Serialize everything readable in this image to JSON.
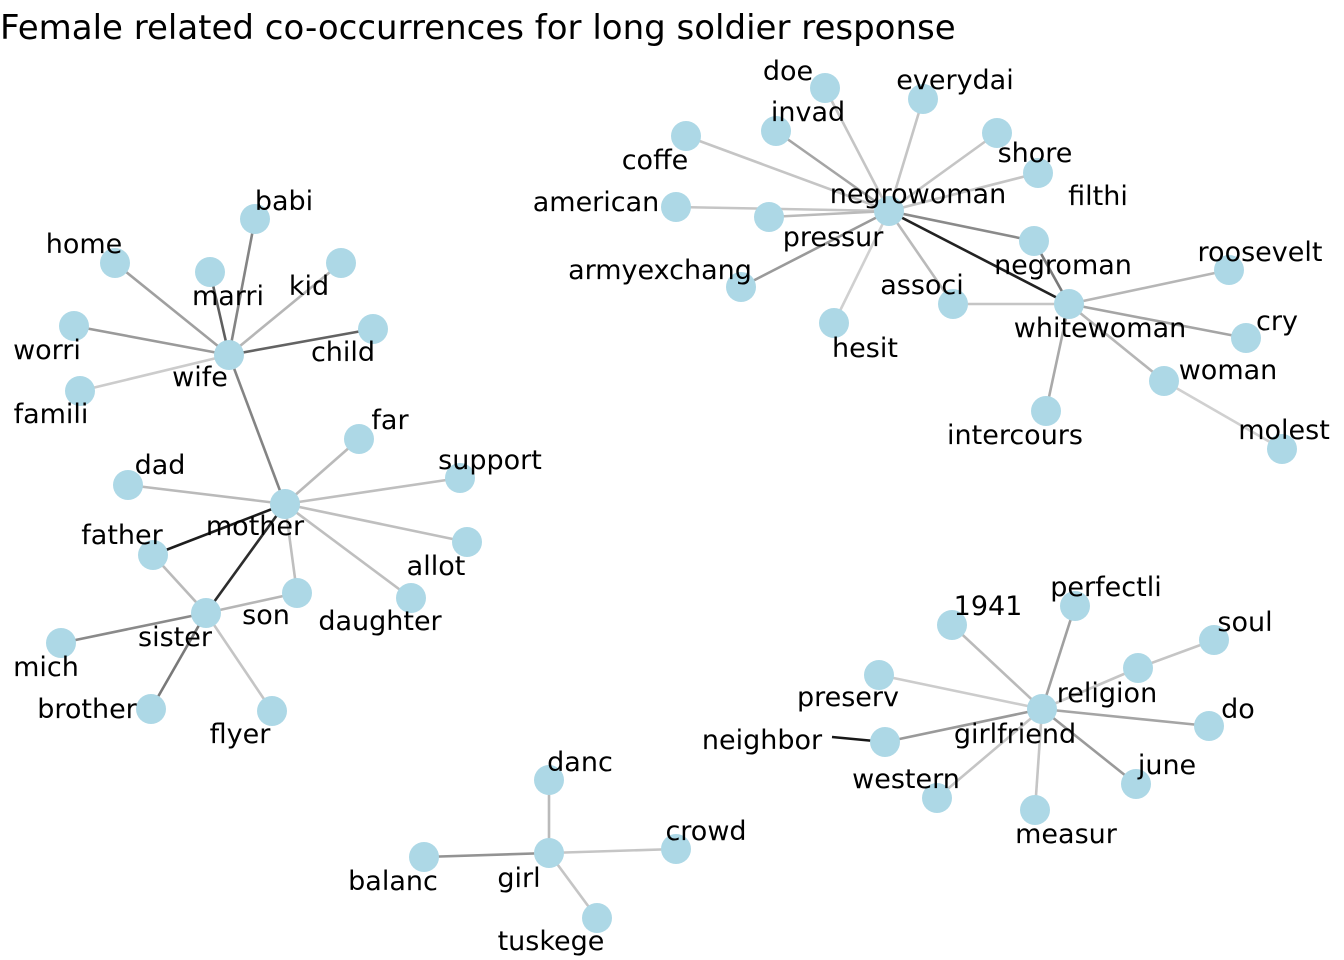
{
  "title": "Female related co-occurrences for long soldier response",
  "node_color": "#add8e6",
  "nodes": [
    {
      "id": "wife",
      "label": "wife"
    },
    {
      "id": "babi",
      "label": "babi"
    },
    {
      "id": "home",
      "label": "home"
    },
    {
      "id": "marri",
      "label": "marri"
    },
    {
      "id": "kid",
      "label": "kid"
    },
    {
      "id": "worri",
      "label": "worri"
    },
    {
      "id": "child",
      "label": "child"
    },
    {
      "id": "famili",
      "label": "famili"
    },
    {
      "id": "mother",
      "label": "mother"
    },
    {
      "id": "far",
      "label": "far"
    },
    {
      "id": "dad",
      "label": "dad"
    },
    {
      "id": "support",
      "label": "support"
    },
    {
      "id": "father",
      "label": "father"
    },
    {
      "id": "allot",
      "label": "allot"
    },
    {
      "id": "son",
      "label": "son"
    },
    {
      "id": "daughter",
      "label": "daughter"
    },
    {
      "id": "sister",
      "label": "sister"
    },
    {
      "id": "mich",
      "label": "mich"
    },
    {
      "id": "brother",
      "label": "brother"
    },
    {
      "id": "flyer",
      "label": "flyer"
    },
    {
      "id": "negrowoman",
      "label": "negrowoman"
    },
    {
      "id": "doe",
      "label": "doe"
    },
    {
      "id": "everydai",
      "label": "everydai"
    },
    {
      "id": "invad",
      "label": "invad"
    },
    {
      "id": "coffe",
      "label": "coffe"
    },
    {
      "id": "shore",
      "label": "shore"
    },
    {
      "id": "filthi",
      "label": "filthi"
    },
    {
      "id": "american",
      "label": "american"
    },
    {
      "id": "pressur",
      "label": "pressur"
    },
    {
      "id": "armyexchang",
      "label": "armyexchang"
    },
    {
      "id": "negroman",
      "label": "negroman"
    },
    {
      "id": "associ",
      "label": "associ"
    },
    {
      "id": "hesit",
      "label": "hesit"
    },
    {
      "id": "whitewoman",
      "label": "whitewoman"
    },
    {
      "id": "roosevelt",
      "label": "roosevelt"
    },
    {
      "id": "cry",
      "label": "cry"
    },
    {
      "id": "woman",
      "label": "woman"
    },
    {
      "id": "intercours",
      "label": "intercours"
    },
    {
      "id": "molest",
      "label": "molest"
    },
    {
      "id": "girlfriend",
      "label": "girlfriend"
    },
    {
      "id": "1941",
      "label": "1941"
    },
    {
      "id": "perfectli",
      "label": "perfectli"
    },
    {
      "id": "soul",
      "label": "soul"
    },
    {
      "id": "religion",
      "label": "religion"
    },
    {
      "id": "preserv",
      "label": "preserv"
    },
    {
      "id": "do",
      "label": "do"
    },
    {
      "id": "neighbor",
      "label": "neighbor"
    },
    {
      "id": "western",
      "label": "western"
    },
    {
      "id": "june",
      "label": "june"
    },
    {
      "id": "measur",
      "label": "measur"
    },
    {
      "id": "girl",
      "label": "girl"
    },
    {
      "id": "danc",
      "label": "danc"
    },
    {
      "id": "crowd",
      "label": "crowd"
    },
    {
      "id": "balanc",
      "label": "balanc"
    },
    {
      "id": "tuskege",
      "label": "tuskege"
    }
  ],
  "edges": [
    {
      "source": "wife",
      "target": "babi",
      "weight": 0.45
    },
    {
      "source": "wife",
      "target": "home",
      "weight": 0.32
    },
    {
      "source": "wife",
      "target": "marri",
      "weight": 0.62
    },
    {
      "source": "wife",
      "target": "kid",
      "weight": 0.22
    },
    {
      "source": "wife",
      "target": "worri",
      "weight": 0.35
    },
    {
      "source": "wife",
      "target": "child",
      "weight": 0.6
    },
    {
      "source": "wife",
      "target": "famili",
      "weight": 0.12
    },
    {
      "source": "wife",
      "target": "mother",
      "weight": 0.45
    },
    {
      "source": "mother",
      "target": "far",
      "weight": 0.2
    },
    {
      "source": "mother",
      "target": "dad",
      "weight": 0.2
    },
    {
      "source": "mother",
      "target": "support",
      "weight": 0.18
    },
    {
      "source": "mother",
      "target": "father",
      "weight": 0.92
    },
    {
      "source": "mother",
      "target": "allot",
      "weight": 0.18
    },
    {
      "source": "mother",
      "target": "son",
      "weight": 0.18
    },
    {
      "source": "mother",
      "target": "daughter",
      "weight": 0.18
    },
    {
      "source": "mother",
      "target": "sister",
      "weight": 0.85
    },
    {
      "source": "father",
      "target": "sister",
      "weight": 0.2
    },
    {
      "source": "sister",
      "target": "son",
      "weight": 0.22
    },
    {
      "source": "sister",
      "target": "mich",
      "weight": 0.42
    },
    {
      "source": "sister",
      "target": "brother",
      "weight": 0.5
    },
    {
      "source": "sister",
      "target": "flyer",
      "weight": 0.15
    },
    {
      "source": "negrowoman",
      "target": "doe",
      "weight": 0.15
    },
    {
      "source": "negrowoman",
      "target": "everydai",
      "weight": 0.15
    },
    {
      "source": "negrowoman",
      "target": "invad",
      "weight": 0.3
    },
    {
      "source": "negrowoman",
      "target": "coffe",
      "weight": 0.15
    },
    {
      "source": "negrowoman",
      "target": "shore",
      "weight": 0.15
    },
    {
      "source": "negrowoman",
      "target": "filthi",
      "weight": 0.15
    },
    {
      "source": "negrowoman",
      "target": "american",
      "weight": 0.15
    },
    {
      "source": "negrowoman",
      "target": "pressur",
      "weight": 0.2
    },
    {
      "source": "negrowoman",
      "target": "armyexchang",
      "weight": 0.35
    },
    {
      "source": "negrowoman",
      "target": "negroman",
      "weight": 0.42
    },
    {
      "source": "negrowoman",
      "target": "associ",
      "weight": 0.2
    },
    {
      "source": "negrowoman",
      "target": "hesit",
      "weight": 0.1
    },
    {
      "source": "negrowoman",
      "target": "whitewoman",
      "weight": 0.9
    },
    {
      "source": "negroman",
      "target": "whitewoman",
      "weight": 0.5
    },
    {
      "source": "whitewoman",
      "target": "associ",
      "weight": 0.15
    },
    {
      "source": "whitewoman",
      "target": "roosevelt",
      "weight": 0.22
    },
    {
      "source": "whitewoman",
      "target": "cry",
      "weight": 0.3
    },
    {
      "source": "whitewoman",
      "target": "woman",
      "weight": 0.22
    },
    {
      "source": "whitewoman",
      "target": "intercours",
      "weight": 0.28
    },
    {
      "source": "woman",
      "target": "molest",
      "weight": 0.1
    },
    {
      "source": "girlfriend",
      "target": "1941",
      "weight": 0.2
    },
    {
      "source": "girlfriend",
      "target": "perfectli",
      "weight": 0.32
    },
    {
      "source": "girlfriend",
      "target": "religion",
      "weight": 0.15
    },
    {
      "source": "religion",
      "target": "soul",
      "weight": 0.15
    },
    {
      "source": "girlfriend",
      "target": "preserv",
      "weight": 0.12
    },
    {
      "source": "girlfriend",
      "target": "do",
      "weight": 0.3
    },
    {
      "source": "girlfriend",
      "target": "neighbor",
      "weight": 0.35
    },
    {
      "source": "girlfriend",
      "target": "western",
      "weight": 0.15
    },
    {
      "source": "girlfriend",
      "target": "june",
      "weight": 0.35
    },
    {
      "source": "girlfriend",
      "target": "measur",
      "weight": 0.15
    },
    {
      "source": "girl",
      "target": "danc",
      "weight": 0.2
    },
    {
      "source": "girl",
      "target": "crowd",
      "weight": 0.15
    },
    {
      "source": "girl",
      "target": "balanc",
      "weight": 0.38
    },
    {
      "source": "girl",
      "target": "tuskege",
      "weight": 0.15
    }
  ]
}
